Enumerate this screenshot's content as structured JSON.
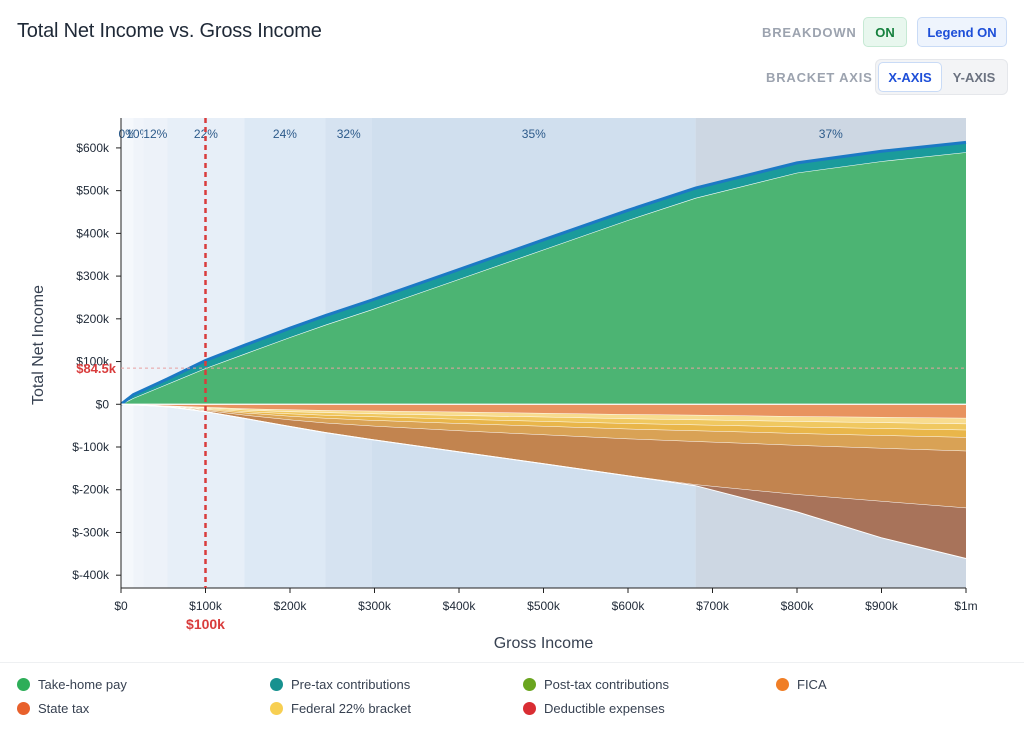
{
  "title": "Total Net Income vs. Gross Income",
  "controls": {
    "breakdown_label": "BREAKDOWN",
    "breakdown_value": "ON",
    "legend_button": "Legend ON",
    "bracket_axis_label": "BRACKET AXIS",
    "x_axis_option": "X-AXIS",
    "y_axis_option": "Y-AXIS"
  },
  "colors": {
    "take_home": "#4cb473",
    "pretax": "#1a9b9b",
    "posttax": "#6aa51f",
    "fica": "#e8935f",
    "state": "#e47f2e",
    "federal22": "#f0cf5c",
    "deductible": "#dc2626",
    "top_line": "#1c79c4",
    "marker": "#d93c3c"
  },
  "chart_data": {
    "type": "area",
    "xlabel": "Gross Income",
    "ylabel": "Total Net Income",
    "xlim": [
      0,
      1000000
    ],
    "ylim": [
      -430000,
      670000
    ],
    "x_ticks": [
      {
        "v": 0,
        "label": "$0"
      },
      {
        "v": 100000,
        "label": "$100k"
      },
      {
        "v": 200000,
        "label": "$200k"
      },
      {
        "v": 300000,
        "label": "$300k"
      },
      {
        "v": 400000,
        "label": "$400k"
      },
      {
        "v": 500000,
        "label": "$500k"
      },
      {
        "v": 600000,
        "label": "$600k"
      },
      {
        "v": 700000,
        "label": "$700k"
      },
      {
        "v": 800000,
        "label": "$800k"
      },
      {
        "v": 900000,
        "label": "$900k"
      },
      {
        "v": 1000000,
        "label": "$1m"
      }
    ],
    "y_ticks": [
      {
        "v": 600000,
        "label": "$600k"
      },
      {
        "v": 500000,
        "label": "$500k"
      },
      {
        "v": 400000,
        "label": "$400k"
      },
      {
        "v": 300000,
        "label": "$300k"
      },
      {
        "v": 200000,
        "label": "$200k"
      },
      {
        "v": 100000,
        "label": "$100k"
      },
      {
        "v": 0,
        "label": "$0"
      },
      {
        "v": -100000,
        "label": "$-100k"
      },
      {
        "v": -200000,
        "label": "$-200k"
      },
      {
        "v": -300000,
        "label": "$-300k"
      },
      {
        "v": -400000,
        "label": "$-400k"
      }
    ],
    "brackets": [
      {
        "label": "0%",
        "from": 0,
        "to": 14600,
        "color": "#f5f8fc"
      },
      {
        "label": "10%",
        "from": 14600,
        "to": 26200,
        "color": "#f0f4fa"
      },
      {
        "label": "12%",
        "from": 26200,
        "to": 55000,
        "color": "#edf2f9"
      },
      {
        "label": "22%",
        "from": 55000,
        "to": 146000,
        "color": "#e7eff8"
      },
      {
        "label": "24%",
        "from": 146000,
        "to": 242000,
        "color": "#dde9f5"
      },
      {
        "label": "32%",
        "from": 242000,
        "to": 297000,
        "color": "#d6e3f1"
      },
      {
        "label": "35%",
        "from": 297000,
        "to": 680000,
        "color": "#d0dfee"
      },
      {
        "label": "37%",
        "from": 680000,
        "to": 1000000,
        "color": "#cdd7e3"
      }
    ],
    "x": [
      0,
      14600,
      55000,
      100000,
      146000,
      200000,
      242000,
      297000,
      400000,
      500000,
      600000,
      680000,
      800000,
      900000,
      1000000
    ],
    "positive_series": [
      {
        "name": "Take-home pay",
        "color": "#4cb473",
        "values": [
          0,
          14500,
          47500,
          84500,
          118000,
          157000,
          186000,
          222000,
          293000,
          362000,
          431000,
          483000,
          542000,
          569000,
          590000
        ]
      },
      {
        "name": "Pre-tax contributions",
        "color": "#1a9b9b",
        "values": [
          0,
          8000,
          12000,
          18000,
          20000,
          21000,
          21500,
          22000,
          22500,
          23000,
          23000,
          23000,
          23000,
          23000,
          23000
        ]
      }
    ],
    "negative_series": [
      {
        "name": "FICA",
        "color": "#e8935f",
        "values": [
          0,
          -1100,
          -4200,
          -7650,
          -11000,
          -13500,
          -14800,
          -16200,
          -18900,
          -21500,
          -24400,
          -26000,
          -29000,
          -31000,
          -33000
        ]
      },
      {
        "name": "Federal 22% bracket",
        "color": "#f8dc8f",
        "values": [
          0,
          0,
          -500,
          -1800,
          -3000,
          -4500,
          -5500,
          -6500,
          -8000,
          -9000,
          -10000,
          -10800,
          -11800,
          -12700,
          -13500
        ]
      },
      {
        "name": "Federal 22% bracket",
        "color": "#f0c860",
        "values": [
          0,
          0,
          -300,
          -1700,
          -3500,
          -5000,
          -6000,
          -7200,
          -8800,
          -10000,
          -11200,
          -12000,
          -13000,
          -13800,
          -14500
        ]
      },
      {
        "name": "Federal 22% bracket",
        "color": "#e9b64a",
        "values": [
          0,
          0,
          -200,
          -1500,
          -3500,
          -5500,
          -7000,
          -8200,
          -9800,
          -11500,
          -13000,
          -13800,
          -15000,
          -16000,
          -17000
        ]
      },
      {
        "name": "State tax",
        "color": "#d9a255",
        "values": [
          0,
          0,
          -500,
          -2500,
          -5000,
          -8500,
          -11000,
          -13500,
          -17000,
          -20000,
          -23000,
          -25000,
          -28000,
          -30000,
          -32000
        ]
      },
      {
        "name": "State tax",
        "color": "#c2844f",
        "values": [
          0,
          0,
          -300,
          -2000,
          -7000,
          -15000,
          -22000,
          -31000,
          -49000,
          -67000,
          -86000,
          -101000,
          -115000,
          -124000,
          -133000
        ]
      },
      {
        "name": "Deductible expenses",
        "color": "#a8735a",
        "values": [
          0,
          0,
          0,
          0,
          0,
          0,
          0,
          0,
          0,
          0,
          0,
          -2000,
          -40000,
          -85000,
          -118000
        ]
      }
    ],
    "marker": {
      "x": 100000,
      "x_label": "$100k",
      "y": 84500,
      "y_label": "$84.5k"
    }
  },
  "legend": [
    {
      "label": "Take-home pay",
      "color": "#2eae59"
    },
    {
      "label": "Pre-tax contributions",
      "color": "#17918f"
    },
    {
      "label": "Post-tax contributions",
      "color": "#6aa51f"
    },
    {
      "label": "FICA",
      "color": "#f07e26"
    },
    {
      "label": "State tax",
      "color": "#e8612c"
    },
    {
      "label": "Federal 22% bracket",
      "color": "#f7cf52"
    },
    {
      "label": "Deductible expenses",
      "color": "#d92d33"
    }
  ]
}
